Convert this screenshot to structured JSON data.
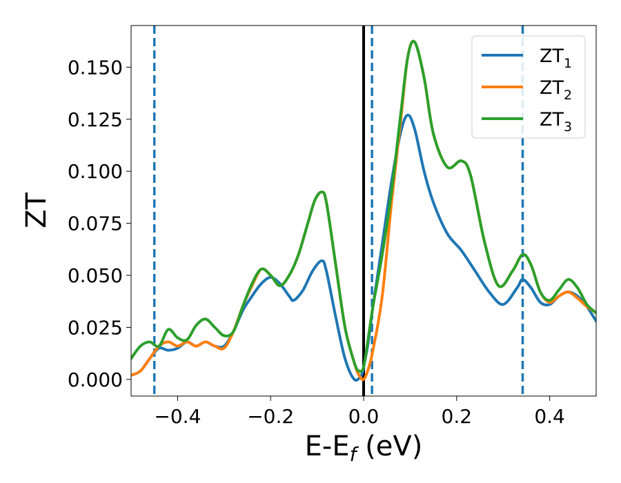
{
  "chart_data": {
    "type": "line",
    "xlabel": "E-E_f (eV)",
    "xlabel_main": "E-E",
    "xlabel_sub": "f",
    "xlabel_tail": " (eV)",
    "ylabel": "ZT",
    "xlim": [
      -0.5,
      0.5
    ],
    "ylim": [
      -0.008,
      0.17
    ],
    "xticks": [
      -0.4,
      -0.2,
      0.0,
      0.2,
      0.4
    ],
    "xtick_labels": [
      "−0.4",
      "−0.2",
      "0.0",
      "0.2",
      "0.4"
    ],
    "yticks": [
      0.0,
      0.025,
      0.05,
      0.075,
      0.1,
      0.125,
      0.15
    ],
    "ytick_labels": [
      "0.000",
      "0.025",
      "0.050",
      "0.075",
      "0.100",
      "0.125",
      "0.150"
    ],
    "grid": false,
    "legend_position": "top-right",
    "vlines": [
      {
        "x": 0.0,
        "style": "solid",
        "color": "#000000"
      },
      {
        "x": -0.45,
        "style": "dashed",
        "color": "#1f77b4"
      },
      {
        "x": 0.018,
        "style": "dashed",
        "color": "#1f77b4"
      },
      {
        "x": 0.342,
        "style": "dashed",
        "color": "#1f77b4"
      }
    ],
    "series": [
      {
        "name": "ZT_1",
        "name_main": "ZT",
        "name_sub": "1",
        "color": "#1f77b4",
        "points": [
          [
            -0.5,
            0.002
          ],
          [
            -0.48,
            0.004
          ],
          [
            -0.46,
            0.01
          ],
          [
            -0.44,
            0.015
          ],
          [
            -0.42,
            0.014
          ],
          [
            -0.4,
            0.015
          ],
          [
            -0.38,
            0.018
          ],
          [
            -0.36,
            0.016
          ],
          [
            -0.34,
            0.018
          ],
          [
            -0.32,
            0.016
          ],
          [
            -0.3,
            0.016
          ],
          [
            -0.28,
            0.023
          ],
          [
            -0.26,
            0.033
          ],
          [
            -0.24,
            0.04
          ],
          [
            -0.22,
            0.046
          ],
          [
            -0.2,
            0.049
          ],
          [
            -0.18,
            0.046
          ],
          [
            -0.16,
            0.04
          ],
          [
            -0.15,
            0.038
          ],
          [
            -0.13,
            0.043
          ],
          [
            -0.11,
            0.052
          ],
          [
            -0.09,
            0.057
          ],
          [
            -0.08,
            0.052
          ],
          [
            -0.06,
            0.03
          ],
          [
            -0.04,
            0.01
          ],
          [
            -0.02,
            0.0
          ],
          [
            -0.005,
            0.002
          ],
          [
            0.0,
            0.006
          ],
          [
            0.01,
            0.018
          ],
          [
            0.02,
            0.035
          ],
          [
            0.04,
            0.065
          ],
          [
            0.06,
            0.095
          ],
          [
            0.08,
            0.119
          ],
          [
            0.095,
            0.127
          ],
          [
            0.11,
            0.12
          ],
          [
            0.13,
            0.1
          ],
          [
            0.15,
            0.085
          ],
          [
            0.18,
            0.07
          ],
          [
            0.21,
            0.062
          ],
          [
            0.24,
            0.052
          ],
          [
            0.27,
            0.042
          ],
          [
            0.3,
            0.036
          ],
          [
            0.33,
            0.044
          ],
          [
            0.342,
            0.048
          ],
          [
            0.36,
            0.044
          ],
          [
            0.38,
            0.037
          ],
          [
            0.4,
            0.036
          ],
          [
            0.42,
            0.04
          ],
          [
            0.44,
            0.042
          ],
          [
            0.46,
            0.04
          ],
          [
            0.48,
            0.035
          ],
          [
            0.5,
            0.028
          ]
        ]
      },
      {
        "name": "ZT_2",
        "name_main": "ZT",
        "name_sub": "2",
        "color": "#ff7f0e",
        "points": [
          [
            -0.5,
            0.002
          ],
          [
            -0.48,
            0.004
          ],
          [
            -0.46,
            0.01
          ],
          [
            -0.44,
            0.016
          ],
          [
            -0.42,
            0.018
          ],
          [
            -0.4,
            0.016
          ],
          [
            -0.38,
            0.018
          ],
          [
            -0.36,
            0.016
          ],
          [
            -0.34,
            0.018
          ],
          [
            -0.32,
            0.016
          ],
          [
            -0.3,
            0.015
          ],
          [
            -0.28,
            0.023
          ],
          [
            -0.26,
            0.035
          ],
          [
            -0.24,
            0.045
          ],
          [
            -0.22,
            0.053
          ],
          [
            -0.2,
            0.05
          ],
          [
            -0.18,
            0.045
          ],
          [
            -0.16,
            0.05
          ],
          [
            -0.14,
            0.06
          ],
          [
            -0.12,
            0.075
          ],
          [
            -0.105,
            0.086
          ],
          [
            -0.09,
            0.09
          ],
          [
            -0.08,
            0.085
          ],
          [
            -0.06,
            0.055
          ],
          [
            -0.04,
            0.025
          ],
          [
            -0.02,
            0.008
          ],
          [
            -0.01,
            0.002
          ],
          [
            0.0,
            0.0
          ],
          [
            0.01,
            0.005
          ],
          [
            0.02,
            0.014
          ],
          [
            0.04,
            0.04
          ],
          [
            0.06,
            0.085
          ],
          [
            0.08,
            0.125
          ],
          [
            0.095,
            0.155
          ],
          [
            0.11,
            0.162
          ],
          [
            0.13,
            0.145
          ],
          [
            0.15,
            0.118
          ],
          [
            0.18,
            0.102
          ],
          [
            0.21,
            0.105
          ],
          [
            0.23,
            0.098
          ],
          [
            0.26,
            0.066
          ],
          [
            0.29,
            0.045
          ],
          [
            0.32,
            0.052
          ],
          [
            0.342,
            0.06
          ],
          [
            0.36,
            0.055
          ],
          [
            0.38,
            0.042
          ],
          [
            0.4,
            0.037
          ],
          [
            0.42,
            0.04
          ],
          [
            0.44,
            0.042
          ],
          [
            0.46,
            0.039
          ],
          [
            0.48,
            0.035
          ],
          [
            0.5,
            0.032
          ]
        ]
      },
      {
        "name": "ZT_3",
        "name_main": "ZT",
        "name_sub": "3",
        "color": "#2ca02c",
        "points": [
          [
            -0.5,
            0.01
          ],
          [
            -0.48,
            0.016
          ],
          [
            -0.46,
            0.018
          ],
          [
            -0.44,
            0.016
          ],
          [
            -0.42,
            0.024
          ],
          [
            -0.4,
            0.02
          ],
          [
            -0.38,
            0.019
          ],
          [
            -0.36,
            0.026
          ],
          [
            -0.34,
            0.029
          ],
          [
            -0.32,
            0.025
          ],
          [
            -0.3,
            0.021
          ],
          [
            -0.28,
            0.023
          ],
          [
            -0.26,
            0.035
          ],
          [
            -0.24,
            0.046
          ],
          [
            -0.22,
            0.053
          ],
          [
            -0.2,
            0.05
          ],
          [
            -0.18,
            0.045
          ],
          [
            -0.16,
            0.05
          ],
          [
            -0.14,
            0.06
          ],
          [
            -0.12,
            0.075
          ],
          [
            -0.105,
            0.086
          ],
          [
            -0.09,
            0.09
          ],
          [
            -0.08,
            0.085
          ],
          [
            -0.06,
            0.055
          ],
          [
            -0.04,
            0.025
          ],
          [
            -0.02,
            0.008
          ],
          [
            -0.01,
            0.004
          ],
          [
            0.0,
            0.006
          ],
          [
            0.01,
            0.02
          ],
          [
            0.02,
            0.035
          ],
          [
            0.04,
            0.06
          ],
          [
            0.06,
            0.09
          ],
          [
            0.08,
            0.128
          ],
          [
            0.095,
            0.155
          ],
          [
            0.11,
            0.162
          ],
          [
            0.13,
            0.145
          ],
          [
            0.15,
            0.118
          ],
          [
            0.18,
            0.102
          ],
          [
            0.21,
            0.105
          ],
          [
            0.23,
            0.098
          ],
          [
            0.26,
            0.066
          ],
          [
            0.29,
            0.045
          ],
          [
            0.32,
            0.052
          ],
          [
            0.342,
            0.06
          ],
          [
            0.36,
            0.055
          ],
          [
            0.38,
            0.042
          ],
          [
            0.4,
            0.038
          ],
          [
            0.42,
            0.043
          ],
          [
            0.44,
            0.048
          ],
          [
            0.46,
            0.044
          ],
          [
            0.48,
            0.036
          ],
          [
            0.5,
            0.032
          ]
        ]
      }
    ]
  }
}
